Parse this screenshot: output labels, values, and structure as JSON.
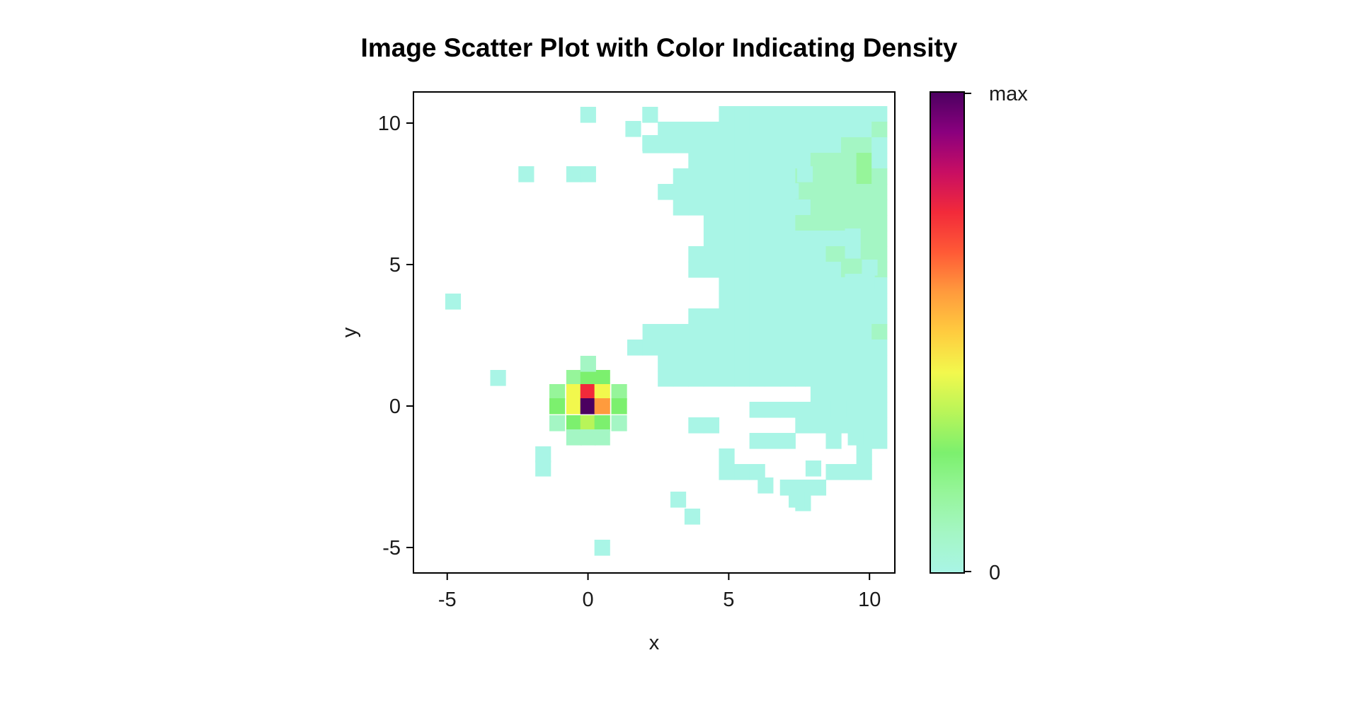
{
  "chart_data": {
    "type": "heatmap",
    "title": "Image Scatter Plot with Color Indicating Density",
    "xlabel": "x",
    "ylabel": "y",
    "xlim": [
      -6.2,
      10.9
    ],
    "ylim": [
      -5.9,
      11.1
    ],
    "x_ticks": [
      "-5",
      "0",
      "5",
      "10"
    ],
    "y_ticks": [
      "-5",
      "0",
      "5",
      "10"
    ],
    "grid": false,
    "bin": {
      "x0": -6.2,
      "y0": -5.9,
      "width": 0.5425,
      "height": 0.55
    },
    "colorbar": {
      "min_label": "0",
      "max_label": "max",
      "colors": [
        "#ffffff",
        "#a9f5e6",
        "#a4f6c4",
        "#96f59a",
        "#7cf06e",
        "#b8f559",
        "#f2f84d",
        "#ffcc3f",
        "#ff9b3d",
        "#ff5a36",
        "#f22a3a",
        "#c80e63",
        "#8a007e",
        "#4b0060"
      ]
    },
    "rows": [
      "...........................................................",
      "...........................................................",
      "............................................aa.............",
      "...........................................................",
      "...............................................aa..........",
      "......................................................a....",
      "............................a..........................a...",
      "..........................a...aa.....a...............a.....",
      "........................aa.aaaaaaaaaaaaa.a...aaaaaa........",
      "......................aa....aaaaabaaaaaaa.....aaaaa........",
      ".....................aaaaaaaaaaaaaaaaaaaaaa.aaa.aaa.a.......",
      "....................a.aaaaaaaaaabaaabaaaaa..a...aa.........",
      "....................aaaaaaaaaaababaaabaaa....aaaaaaaa......",
      "................aaaaaaaaaaaaaabbbbbbaaaaaaa..aaaaaa........",
      "...............aaaaaaaaaaaaabbabbaaaaaaaaaaaaaaaaaa........",
      "..................aaaaaaaabbbcadbbbbaaaaaaaa..aa...........",
      ".................aaaaaaaabbbbcbbbbbbbbaaaaaaaaaaaaa.........",
      "................aaaaaaaaabbbbbbbbbbbbbbaaaaaaaaaaa.........",
      ".................aaaaaaaaabbbbbbbbbbbbbbbaaaaaaaaaa.........",
      "...................aaaaaabbbbbbbbbbbbbbbbaaaaaaaaaaa........",
      "...................aaaaaaaaaabbbbbbbbbbbbbbbaaaaaaaaa.......",
      "..................aaaaaaaaabbbbbbbbbbbbbbbbaaaaaaaaaa.......",
      "..................aaaaaaaaaabbbbbbbbbbbbbbbbaaaaaaaaa.......",
      "....................aaaaaaaaaaabbbbbbbbbbbbbbbaaaaaaaa......",
      "....................aaaaaaaaaaabbbbbbbbbbbbaaaaaaaaaaa......",
      "..................aaaaaaaaaaaaabbbbbbbbbbbaaaaaaaaaaaaaa....",
      "...............aaaaaaaaaaaaaaabbbbbbbbbbaaaaaaaaaaaaa.....a.",
      "..............aaaaaaaaaaaaaaaaaabbbbbbbaaaaaaaaaaaa.........",
      "................aaaaaaaaaaaaaaaaaaaaaaaaaaaaaaaaaaaa...a.....",
      "................aaaaaaaaaaaaaaaaaaaaaaaaaaaaaaaaaaaa...aa....",
      "..........................aaaaaaaaaaaaaaaaaaaaaaaaaaaaaaaa.aa.",
      "......................aaaaaaaaaaaaaaaaaaaaaaaaaaaaaaaaaaaa.....",
      "..................aa.....aaaaaaaaaaaaaaaaaaaaaaaaaaaa...a.....",
      "......................aaa..a.aaaaaaaaaaaaaaaaaaaaaaaaaaa......",
      "....................a........a..aaaaaaaa...aaaaaaaaa.........",
      "....................aaa....aaa..aa..aaaaaa..aaaaa.aaaaa......",
      "........................aaa......aa..a.a..aaaaaaa...a.......",
      ".........................a.....................aa...........",
      "...........................................................",
      "...........................................................",
      "...........................................................",
      "..........................................................."
    ],
    "cells": [
      {
        "x": -4.8,
        "y": 3.7,
        "level": 1
      },
      {
        "x": 0.0,
        "y": 10.3,
        "level": 1
      },
      {
        "x": 2.2,
        "y": 10.3,
        "level": 1
      },
      {
        "x": 1.6,
        "y": 9.8,
        "level": 1
      },
      {
        "x": 2.2,
        "y": 9.3,
        "level": 1
      },
      {
        "x": 4.9,
        "y": 9.3,
        "level": 1
      },
      {
        "x": 5.5,
        "y": 9.3,
        "level": 1
      },
      {
        "x": -2.2,
        "y": 8.2,
        "level": 1
      },
      {
        "x": -0.5,
        "y": 8.2,
        "level": 1
      },
      {
        "x": 0.0,
        "y": 8.2,
        "level": 1
      },
      {
        "x": 7.7,
        "y": 8.2,
        "level": 1
      },
      {
        "x": 7.2,
        "y": 8.7,
        "level": 1
      },
      {
        "x": 7.2,
        "y": 7.6,
        "level": 1
      },
      {
        "x": 9.4,
        "y": 6.0,
        "level": 1
      },
      {
        "x": 9.4,
        "y": 5.5,
        "level": 1
      },
      {
        "x": 10.0,
        "y": 4.9,
        "level": 1
      },
      {
        "x": 9.4,
        "y": 4.4,
        "level": 1
      },
      {
        "x": 9.9,
        "y": 4.4,
        "level": 1
      },
      {
        "x": 8.8,
        "y": 2.1,
        "level": 1
      },
      {
        "x": 9.3,
        "y": 2.1,
        "level": 1
      },
      {
        "x": 8.9,
        "y": -0.1,
        "level": 1
      },
      {
        "x": 9.5,
        "y": -1.1,
        "level": 1
      },
      {
        "x": 0.5,
        "y": -5.0,
        "level": 1
      },
      {
        "x": 3.7,
        "y": -3.9,
        "level": 1
      },
      {
        "x": 3.2,
        "y": -3.3,
        "level": 1
      },
      {
        "x": 7.4,
        "y": -3.3,
        "level": 1
      },
      {
        "x": 6.3,
        "y": -2.8,
        "level": 1
      },
      {
        "x": 8.0,
        "y": -2.2,
        "level": 1
      },
      {
        "x": -1.6,
        "y": -2.2,
        "level": 1
      },
      {
        "x": -1.6,
        "y": -1.7,
        "level": 1
      },
      {
        "x": -3.2,
        "y": 1.0,
        "level": 1
      },
      {
        "x": 0.5,
        "y": 1.0,
        "level": 4
      },
      {
        "x": -0.5,
        "y": 1.0,
        "level": 3
      },
      {
        "x": 0.0,
        "y": 1.0,
        "level": 4
      },
      {
        "x": -1.1,
        "y": 0.5,
        "level": 3
      },
      {
        "x": -0.5,
        "y": 0.5,
        "level": 6
      },
      {
        "x": 0.0,
        "y": 0.5,
        "level": 10
      },
      {
        "x": 0.5,
        "y": 0.5,
        "level": 6
      },
      {
        "x": 1.1,
        "y": 0.5,
        "level": 3
      },
      {
        "x": -1.1,
        "y": 0.0,
        "level": 4
      },
      {
        "x": -0.5,
        "y": 0.0,
        "level": 6
      },
      {
        "x": 0.0,
        "y": 0.0,
        "level": 13
      },
      {
        "x": 0.5,
        "y": 0.0,
        "level": 8
      },
      {
        "x": 1.1,
        "y": 0.0,
        "level": 4
      },
      {
        "x": -0.5,
        "y": -0.6,
        "level": 4
      },
      {
        "x": 0.0,
        "y": -0.6,
        "level": 5
      },
      {
        "x": 0.5,
        "y": -0.6,
        "level": 4
      },
      {
        "x": -1.1,
        "y": -0.6,
        "level": 2
      },
      {
        "x": 1.1,
        "y": -0.6,
        "level": 2
      },
      {
        "x": 0.0,
        "y": -1.1,
        "level": 2
      },
      {
        "x": -0.5,
        "y": -1.1,
        "level": 2
      },
      {
        "x": 0.5,
        "y": -1.1,
        "level": 2
      },
      {
        "x": 0.0,
        "y": 1.5,
        "level": 2
      }
    ]
  }
}
